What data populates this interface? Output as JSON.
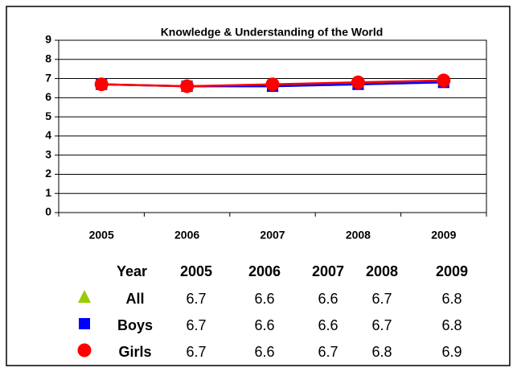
{
  "chart_data": {
    "type": "line",
    "title": "Knowledge & Understanding of the World",
    "categories": [
      "2005",
      "2006",
      "2007",
      "2008",
      "2009"
    ],
    "series": [
      {
        "name": "All",
        "color": "#99cc00",
        "marker": "triangle",
        "values": [
          6.7,
          6.6,
          6.6,
          6.7,
          6.8
        ]
      },
      {
        "name": "Boys",
        "color": "#0000ff",
        "marker": "square",
        "values": [
          6.7,
          6.6,
          6.6,
          6.7,
          6.8
        ]
      },
      {
        "name": "Girls",
        "color": "#ff0000",
        "marker": "circle",
        "values": [
          6.7,
          6.6,
          6.7,
          6.8,
          6.9
        ]
      }
    ],
    "ylim": [
      0,
      9
    ],
    "yticks": [
      0,
      1,
      2,
      3,
      4,
      5,
      6,
      7,
      8,
      9
    ],
    "grid": true,
    "table_header": "Year"
  }
}
